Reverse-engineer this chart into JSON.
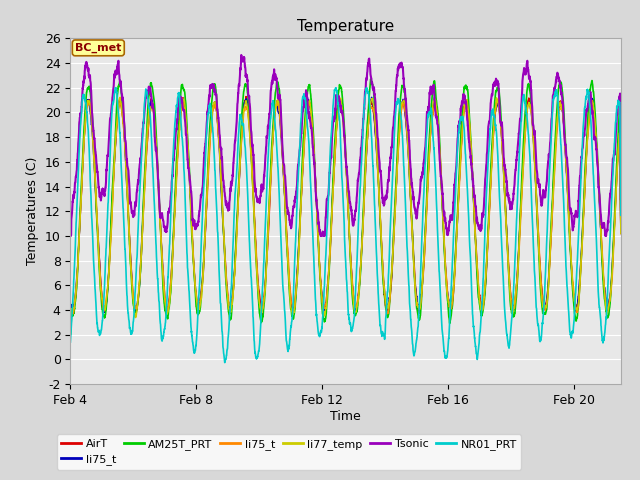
{
  "title": "Temperature",
  "xlabel": "Time",
  "ylabel": "Temperatures (C)",
  "ylim": [
    -2,
    26
  ],
  "xlim_days": [
    4,
    21.5
  ],
  "xticks_days": [
    4,
    8,
    12,
    16,
    20
  ],
  "xtick_labels": [
    "Feb 4",
    "Feb 8",
    "Feb 12",
    "Feb 16",
    "Feb 20"
  ],
  "annotation_label": "BC_met",
  "series_order": [
    "AirT",
    "li75_t_b",
    "AM25T_PRT",
    "li75_t",
    "li77_temp",
    "Tsonic",
    "NR01_PRT"
  ],
  "series_colors": {
    "AirT": "#dd0000",
    "li75_t_b": "#0000bb",
    "AM25T_PRT": "#00cc00",
    "li75_t": "#ff8800",
    "li77_temp": "#cccc00",
    "Tsonic": "#9900bb",
    "NR01_PRT": "#00cccc"
  },
  "legend_labels": [
    "AirT",
    "li75_t",
    "AM25T_PRT",
    "li75_t",
    "li77_temp",
    "Tsonic",
    "NR01_PRT"
  ],
  "bg_color": "#d8d8d8",
  "plot_bg_color": "#e8e8e8",
  "grid_color": "#ffffff",
  "title_fontsize": 11,
  "axis_fontsize": 9,
  "tick_fontsize": 9,
  "legend_fontsize": 8
}
